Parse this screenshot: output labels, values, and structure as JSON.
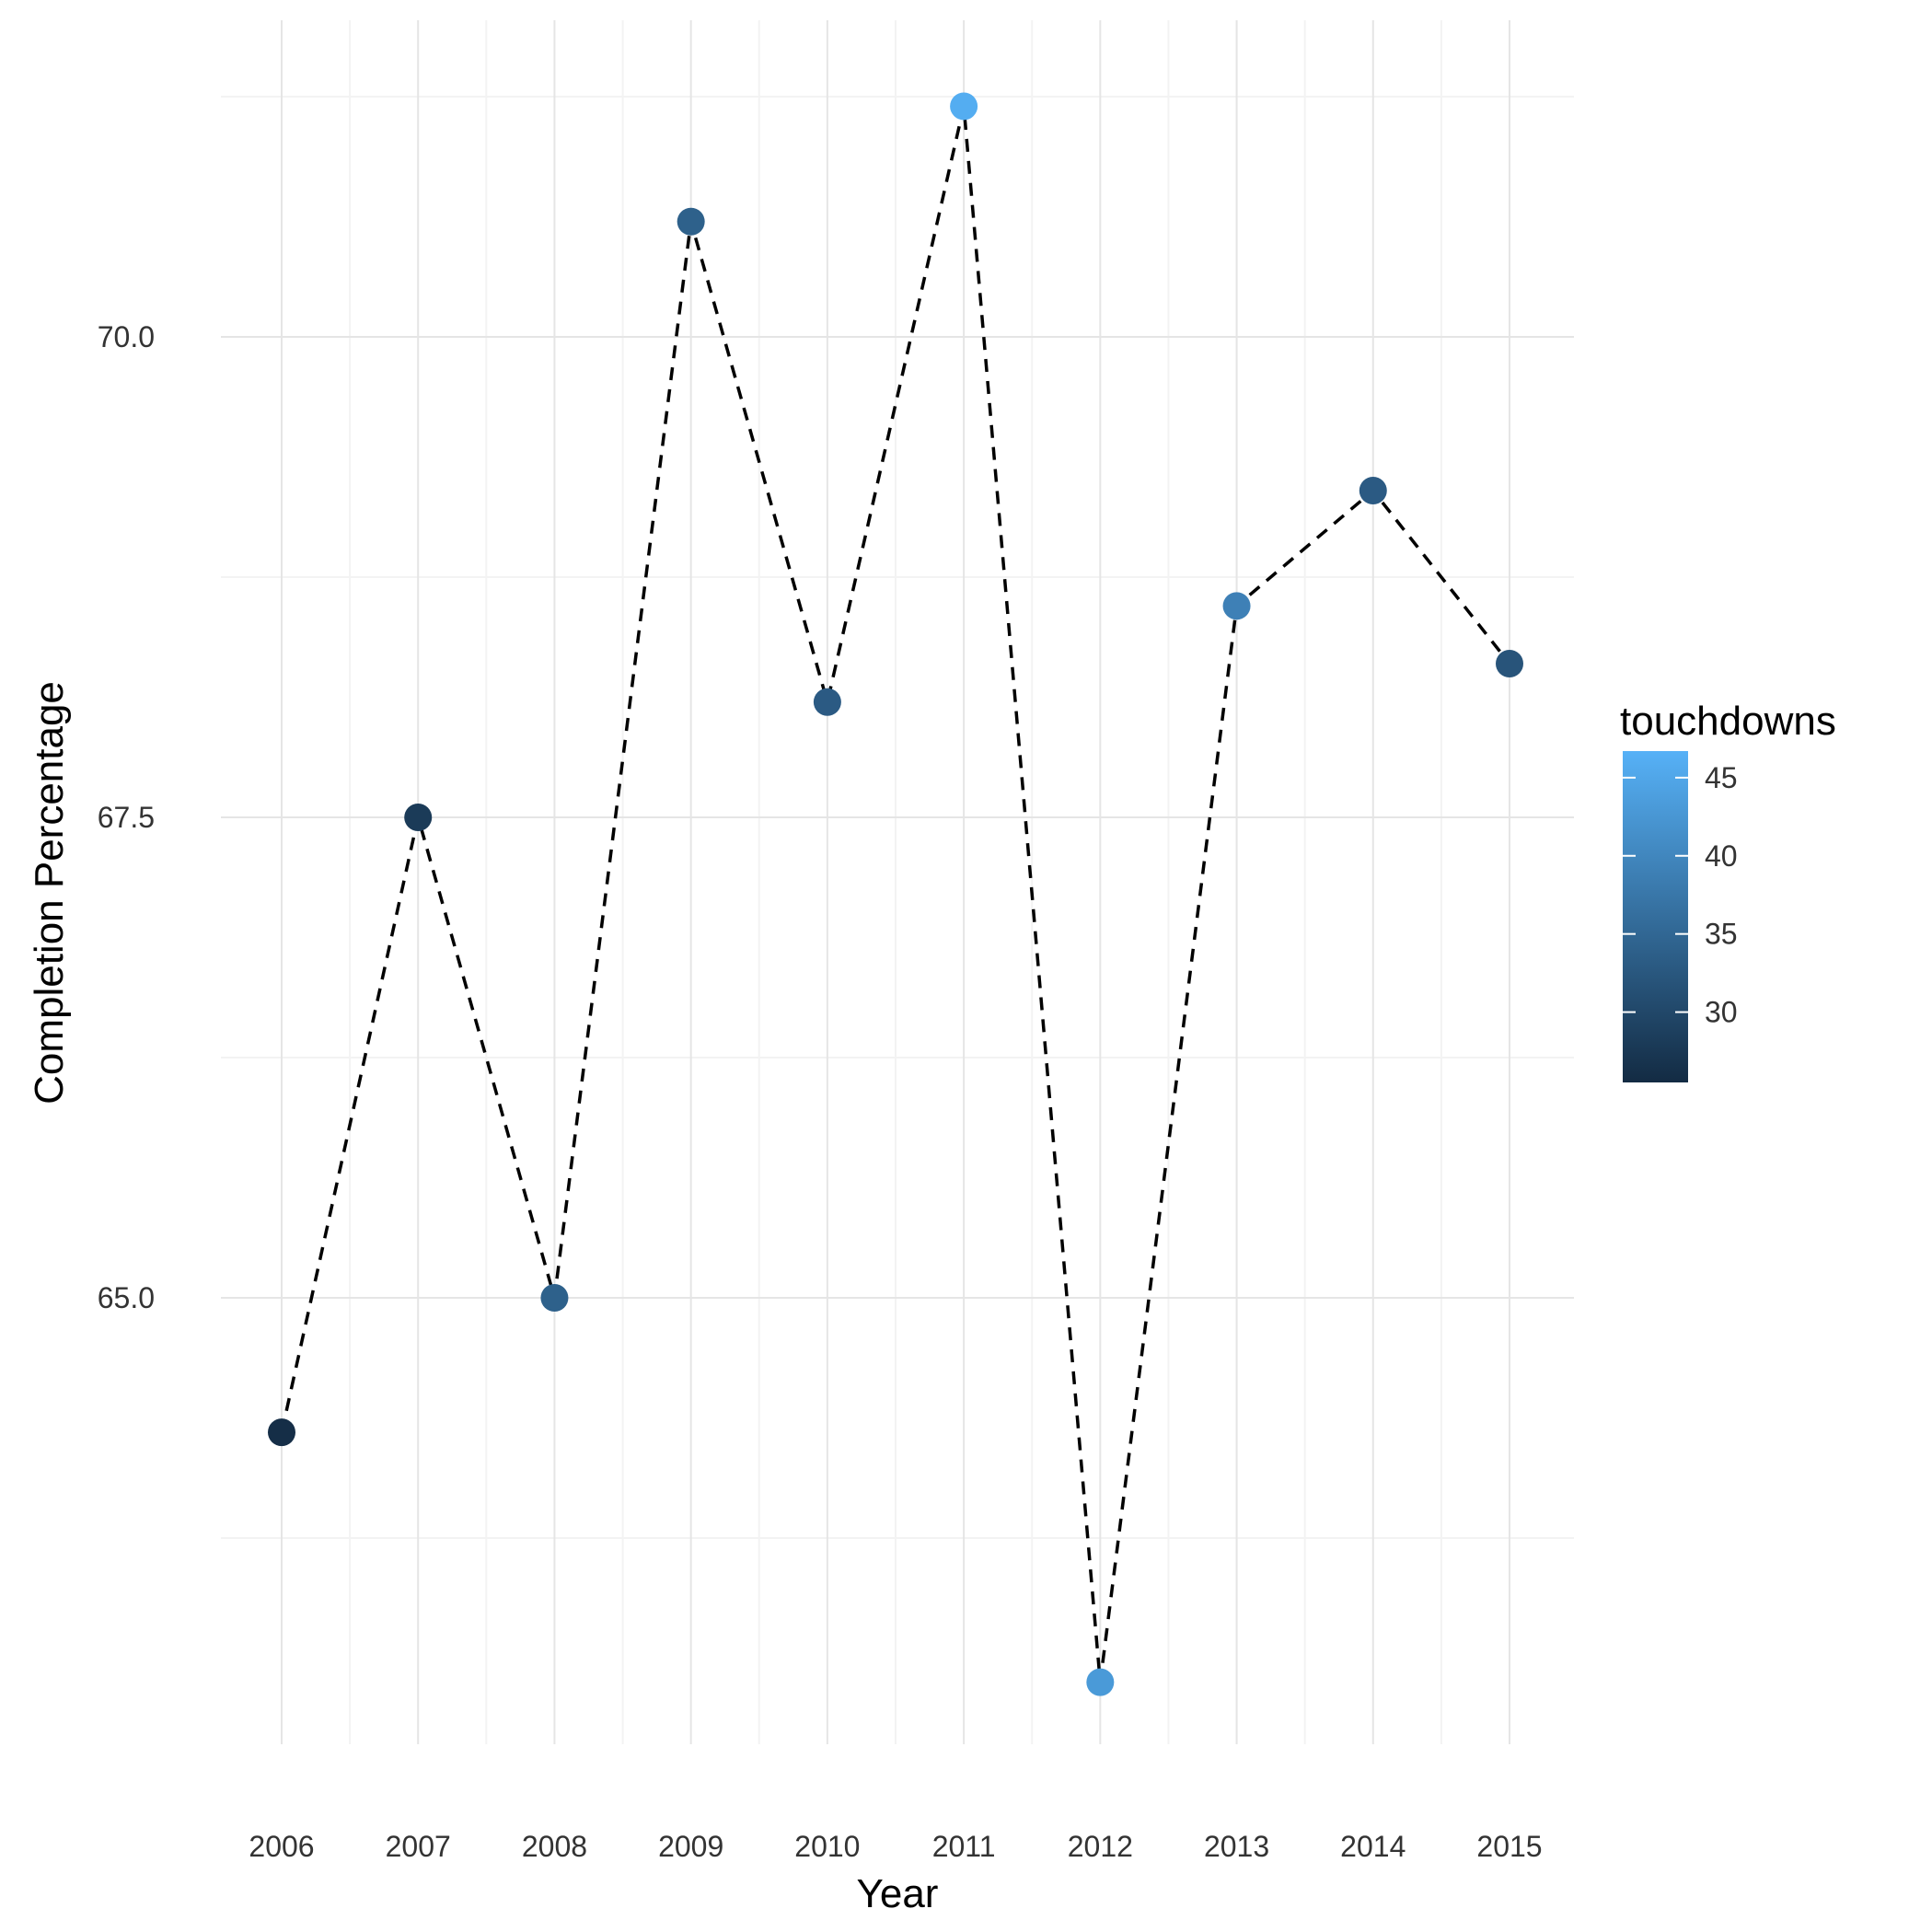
{
  "chart_data": {
    "type": "line",
    "xlabel": "Year",
    "ylabel": "Completion Percentage",
    "x": [
      2006,
      2007,
      2008,
      2009,
      2010,
      2011,
      2012,
      2013,
      2014,
      2015
    ],
    "y": [
      64.3,
      67.5,
      65.0,
      70.6,
      68.1,
      71.2,
      63.0,
      68.6,
      69.2,
      68.3
    ],
    "touchdowns": [
      26,
      28,
      34,
      34,
      33,
      46,
      43,
      39,
      33,
      32
    ],
    "ylim": [
      62.5,
      71.5
    ],
    "yticks": [
      65.0,
      67.5,
      70.0
    ],
    "ytick_labels": [
      "65.0",
      "67.5",
      "70.0"
    ],
    "grid": true,
    "line_style": "dashed",
    "line_color": "#000000",
    "legend": {
      "title": "touchdowns",
      "placement": "right",
      "range": [
        25.5,
        46.7
      ],
      "ticks": [
        30,
        35,
        40,
        45
      ],
      "tick_labels": [
        "30",
        "35",
        "40",
        "45"
      ],
      "color_low": "#132B43",
      "color_high": "#56B1F7"
    }
  }
}
